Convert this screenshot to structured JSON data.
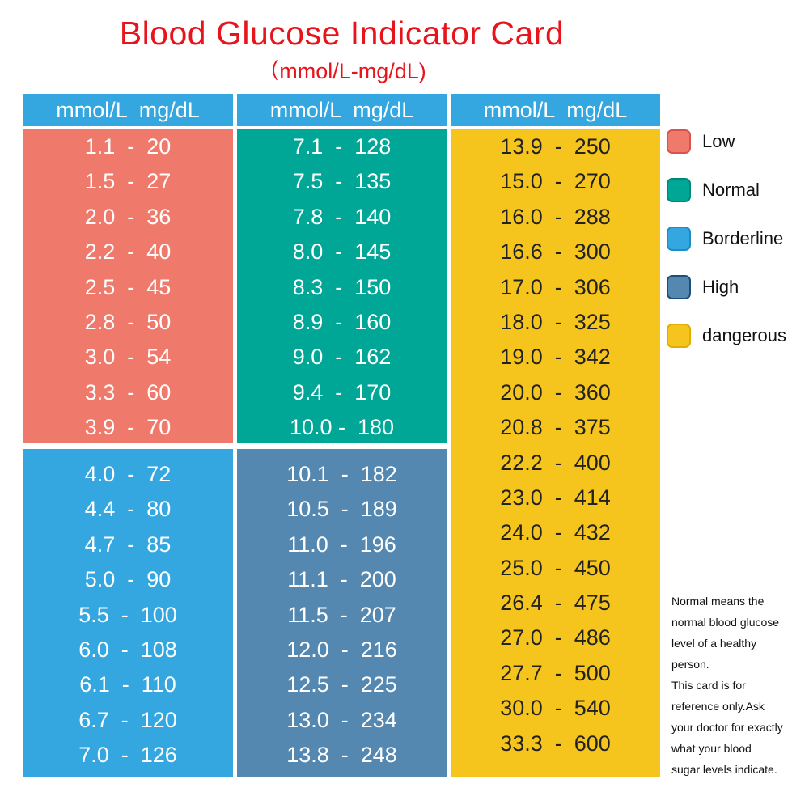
{
  "title": "Blood Glucose Indicator Card",
  "subtitle": "（mmol/L-mg/dL)",
  "column_header": "mmol/L  mg/dL",
  "colors": {
    "low": "#ef7a6c",
    "normal": "#00a797",
    "borderline": "#34a6e0",
    "high": "#5488b0",
    "dangerous": "#f6c51d",
    "title": "#e8141c"
  },
  "blocks": {
    "low": [
      "1.1  -  20",
      "1.5  -  27",
      "2.0  -  36",
      "2.2  -  40",
      "2.5  -  45",
      "2.8  -  50",
      "3.0  -  54",
      "3.3  -  60",
      "3.9  -  70"
    ],
    "normal": [
      "7.1  -  128",
      "7.5  -  135",
      "7.8  -  140",
      "8.0  -  145",
      "8.3  -  150",
      "8.9  -  160",
      "9.0  -  162",
      "9.4  -  170",
      "10.0 -  180"
    ],
    "borderline": [
      "4.0  -  72",
      "4.4  -  80",
      "4.7  -  85",
      "5.0  -  90",
      "5.5  -  100",
      "6.0  -  108",
      "6.1  -  110",
      "6.7  -  120",
      "7.0  -  126"
    ],
    "high": [
      "10.1  -  182",
      "10.5  -  189",
      "11.0  -  196",
      "11.1  -  200",
      "11.5  -  207",
      "12.0  -  216",
      "12.5  -  225",
      "13.0  -  234",
      "13.8  -  248"
    ],
    "dangerous": [
      "13.9  -  250",
      "15.0  -  270",
      "16.0  -  288",
      "16.6  -  300",
      "17.0  -  306",
      "18.0  -  325",
      "19.0  -  342",
      "20.0  -  360",
      "20.8  -  375",
      "22.2  -  400",
      "23.0  -  414",
      "24.0  -  432",
      "25.0  -  450",
      "26.4  -  475",
      "27.0  -  486",
      "27.7  -  500",
      "30.0  -  540",
      "33.3  -  600"
    ]
  },
  "legend": [
    {
      "label": "Low",
      "color": "#ef7a6c",
      "border": "#d9534a"
    },
    {
      "label": "Normal",
      "color": "#00a797",
      "border": "#00897b"
    },
    {
      "label": "Borderline",
      "color": "#34a6e0",
      "border": "#1f8cc4"
    },
    {
      "label": "High",
      "color": "#5488b0",
      "border": "#1e4f7a"
    },
    {
      "label": "dangerous",
      "color": "#f6c51d",
      "border": "#e0ae00"
    }
  ],
  "note_lines": [
    "Normal means the",
    "normal blood glucose",
    "level of a healthy",
    "person.",
    "This card is for",
    "reference only.Ask",
    "your doctor for exactly",
    "what your blood",
    "sugar levels indicate."
  ]
}
